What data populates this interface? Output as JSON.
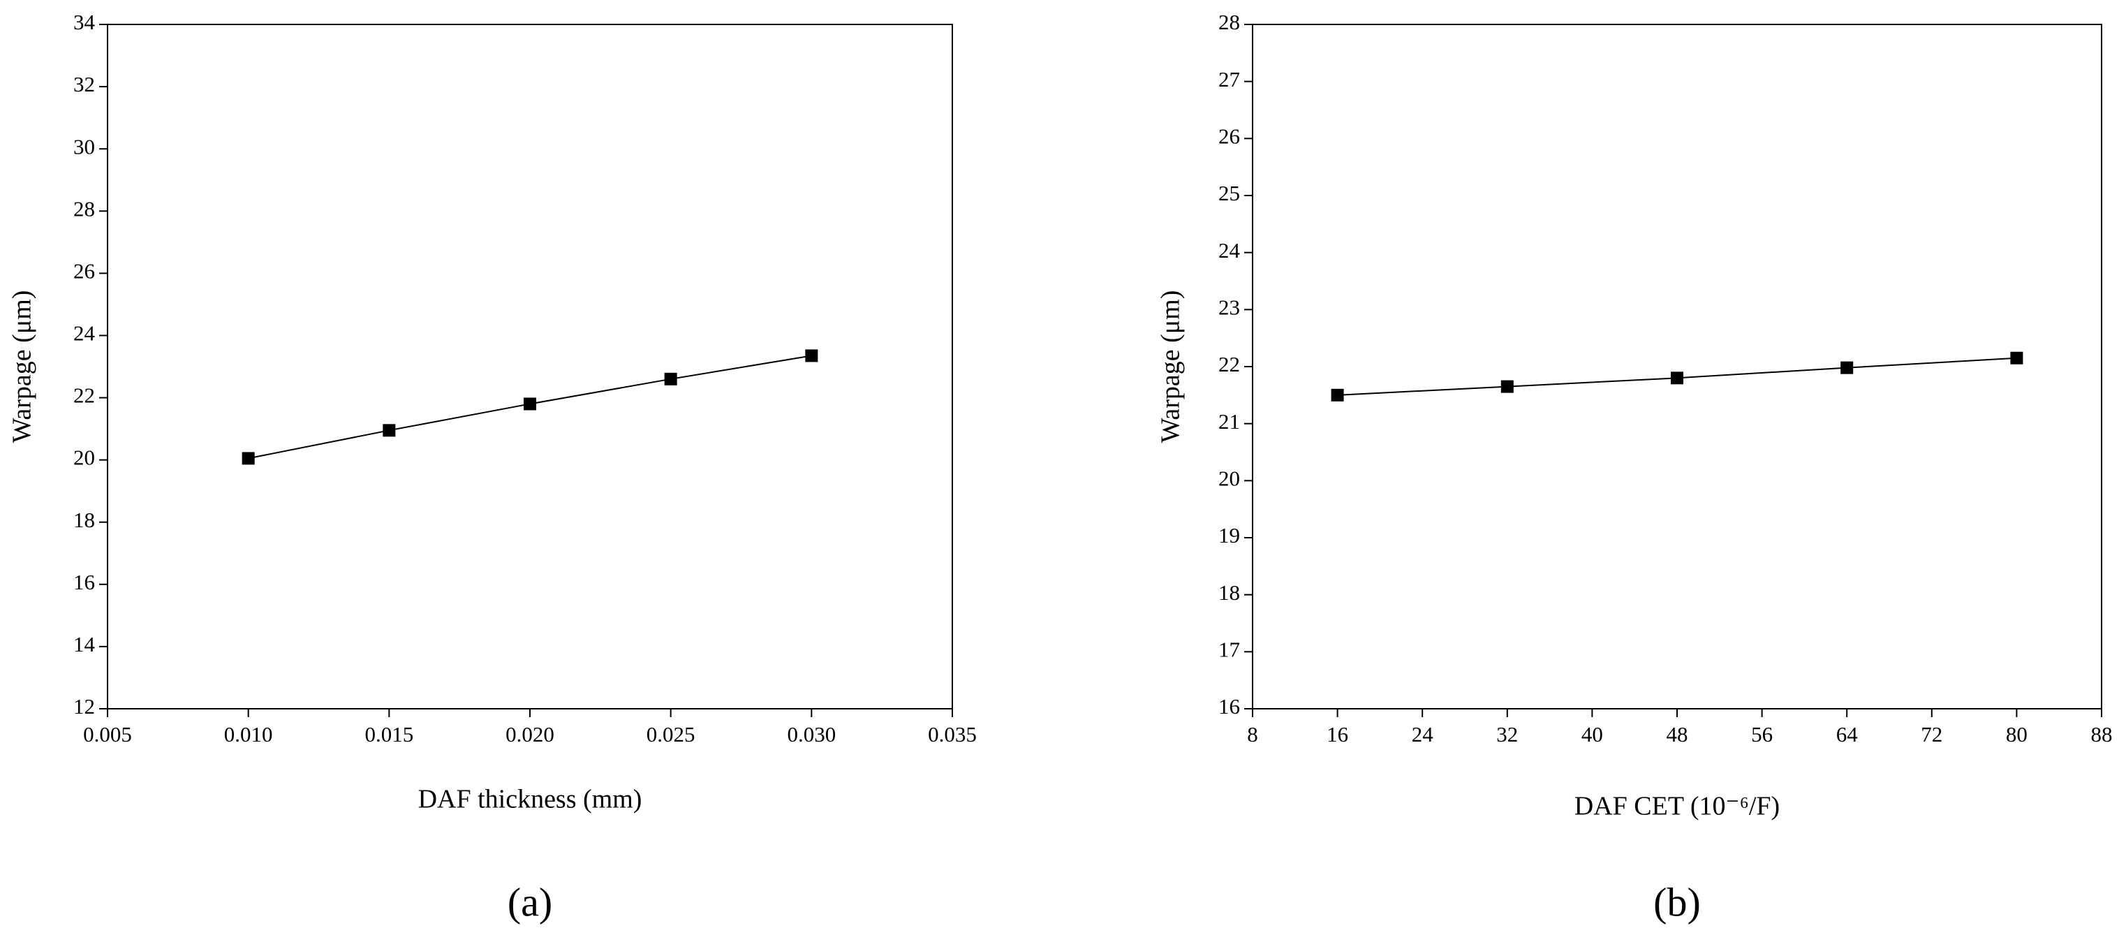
{
  "chart_data": [
    {
      "type": "line",
      "caption": "(a)",
      "x_label": "DAF thickness (mm)",
      "y_label": "Warpage (μm)",
      "x": [
        0.01,
        0.015,
        0.02,
        0.025,
        0.03
      ],
      "values": [
        20.05,
        20.95,
        21.8,
        22.6,
        23.35
      ],
      "color": "#000000",
      "xlim": [
        0.005,
        0.035
      ],
      "xticks": [
        0.005,
        {
          "value": 0.01,
          "label": "0.010"
        },
        0.015,
        {
          "value": 0.02,
          "label": "0.020"
        },
        0.025,
        {
          "value": 0.03,
          "label": "0.030"
        },
        0.035
      ],
      "ylim": [
        12,
        34
      ],
      "yticks": [
        12,
        14,
        16,
        18,
        20,
        22,
        24,
        26,
        28,
        30,
        32,
        34
      ]
    },
    {
      "type": "line",
      "caption": "(b)",
      "x_label": "DAF CET (10⁻⁶/F)",
      "y_label": "Warpage (μm)",
      "x": [
        16,
        32,
        48,
        64,
        80
      ],
      "values": [
        21.5,
        21.65,
        21.8,
        21.98,
        22.15
      ],
      "color": "#000000",
      "xlim": [
        8,
        88
      ],
      "xticks": [
        8,
        16,
        24,
        32,
        40,
        48,
        56,
        64,
        72,
        80,
        88
      ],
      "ylim": [
        16,
        28
      ],
      "yticks": [
        16,
        17,
        18,
        19,
        20,
        21,
        22,
        23,
        24,
        25,
        26,
        27,
        28
      ]
    }
  ]
}
